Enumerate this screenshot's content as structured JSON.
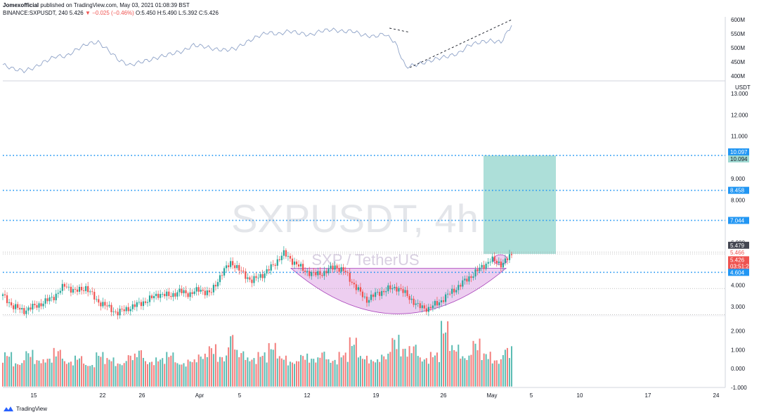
{
  "header": {
    "author": "Jomexofficial",
    "published": "published on TradingView.com, May 03, 2021 01:08:39 BST",
    "symbol": "BINANCE:SXPUSDT, 240",
    "last": "5.426",
    "change": "−0.025 (−0.46%)",
    "ohlc_o": "O:5.450",
    "ohlc_h": "H:5.490",
    "ohlc_l": "L:5.392",
    "ohlc_c": "C:5.426"
  },
  "watermark": {
    "title": "SXPUSDT, 4h",
    "subtitle": "SXP / TetherUS"
  },
  "footer": {
    "brand": "TradingView"
  },
  "colors": {
    "up": "#26a69a",
    "down": "#ef5350",
    "level": "#2196f3",
    "target": "#9fd9d2",
    "cup": "#e7bdeb",
    "cup_stroke": "#ab47bc",
    "indicator": "#8fa3c8"
  },
  "chart_data": [
    {
      "type": "line",
      "name": "indicator",
      "y_ticks": [
        "600M",
        "550M",
        "500M",
        "450M",
        "400M"
      ],
      "y_tick_values": [
        600,
        550,
        500,
        450,
        400
      ],
      "ylim": [
        390,
        610
      ],
      "values": [
        440,
        425,
        418,
        430,
        452,
        470,
        470,
        495,
        515,
        520,
        490,
        455,
        438,
        450,
        458,
        470,
        480,
        488,
        510,
        505,
        495,
        492,
        498,
        520,
        540,
        555,
        548,
        560,
        552,
        545,
        560,
        565,
        558,
        560,
        545,
        540,
        550,
        520,
        432,
        440,
        450,
        462,
        470,
        480,
        510,
        520,
        525,
        520,
        580
      ],
      "trendlines": [
        {
          "from": [
            0.76,
            570
          ],
          "to": [
            0.8,
            555
          ]
        },
        {
          "from": [
            0.8,
            430
          ],
          "to": [
            1.0,
            600
          ]
        }
      ]
    },
    {
      "type": "candlestick",
      "name": "SXPUSDT 4h",
      "x_ticks": [
        "15",
        "22",
        "26",
        "Apr",
        "5",
        "12",
        "19",
        "26",
        "May",
        "5",
        "10",
        "17",
        "24"
      ],
      "y_ticks": [
        "13.000",
        "12.000",
        "11.000",
        "10.000",
        "9.000",
        "8.000",
        "7.000",
        "6.000",
        "5.000",
        "4.000",
        "3.000"
      ],
      "y_tick_values": [
        13,
        12,
        11,
        10,
        9,
        8,
        7,
        6,
        5,
        4,
        3
      ],
      "ylim": [
        2.6,
        13.5
      ],
      "ylabel": "USDT",
      "close_path": [
        3.5,
        3.0,
        2.8,
        3.0,
        3.2,
        3.5,
        4.0,
        3.7,
        3.9,
        3.3,
        3.0,
        2.7,
        2.9,
        3.1,
        3.3,
        3.6,
        3.5,
        3.7,
        3.6,
        3.8,
        3.6,
        4.5,
        5.1,
        4.6,
        4.2,
        4.5,
        4.9,
        5.5,
        5.1,
        4.7,
        4.5,
        4.6,
        4.9,
        4.6,
        3.9,
        3.3,
        3.6,
        3.8,
        3.9,
        3.5,
        3.0,
        2.9,
        3.2,
        3.6,
        4.0,
        4.4,
        4.8,
        5.2,
        5.0,
        5.4
      ],
      "levels": [
        10.097,
        8.458,
        7.044,
        4.604
      ],
      "price_tags": [
        "10.097",
        "10.094",
        "8.458",
        "7.044",
        "5.479",
        "5.466",
        "5.426",
        "03:51:24",
        "4.604"
      ],
      "target_zone": [
        5.47,
        10.097
      ]
    },
    {
      "type": "bar",
      "name": "volume oscillator",
      "y_ticks": [
        "2.000",
        "1.000",
        "0.000",
        "-1.000"
      ],
      "y_tick_values": [
        2,
        1,
        0,
        -1
      ],
      "ylim": [
        -1,
        2.7
      ],
      "values": [
        0.9,
        0.3,
        1.0,
        0.5,
        0.6,
        1.1,
        0.4,
        0.7,
        0.2,
        0.9,
        0.6,
        0.3,
        0.8,
        1.1,
        0.4,
        0.6,
        0.9,
        0.3,
        0.5,
        0.8,
        1.3,
        0.7,
        2.0,
        1.0,
        0.6,
        0.9,
        1.4,
        0.7,
        0.4,
        0.8,
        0.6,
        1.0,
        0.5,
        0.9,
        1.7,
        0.7,
        0.5,
        0.8,
        1.8,
        1.2,
        1.4,
        0.6,
        0.9,
        2.6,
        1.3,
        0.7,
        1.6,
        0.9,
        0.5,
        1.2
      ]
    }
  ]
}
